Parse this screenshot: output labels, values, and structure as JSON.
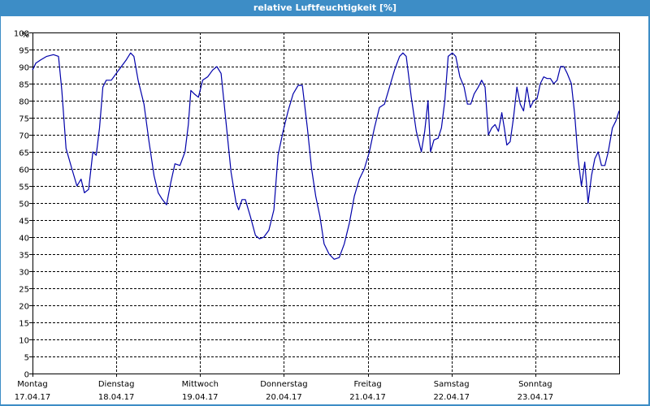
{
  "window": {
    "title": "relative Luftfeuchtigkeit [%]"
  },
  "colors": {
    "titlebar": "#3d8dc6",
    "line": "#0000aa",
    "grid": "#000000",
    "axis": "#000000"
  },
  "chart_data": {
    "type": "line",
    "title": "relative Luftfeuchtigkeit [%]",
    "ylabel": "%",
    "xlabel": "",
    "ylim": [
      0,
      100
    ],
    "xlim": [
      0,
      7
    ],
    "grid": true,
    "yticks": [
      "0",
      "5",
      "10",
      "15",
      "20",
      "25",
      "30",
      "35",
      "40",
      "45",
      "50",
      "55",
      "60",
      "65",
      "70",
      "75",
      "80",
      "85",
      "90",
      "95",
      "100"
    ],
    "xticks": [
      {
        "day": "Montag",
        "date": "17.04.17"
      },
      {
        "day": "Dienstag",
        "date": "18.04.17"
      },
      {
        "day": "Mittwoch",
        "date": "19.04.17"
      },
      {
        "day": "Donnerstag",
        "date": "20.04.17"
      },
      {
        "day": "Freitag",
        "date": "21.04.17"
      },
      {
        "day": "Samstag",
        "date": "22.04.17"
      },
      {
        "day": "Sonntag",
        "date": "23.04.17"
      }
    ],
    "series": [
      {
        "values": [
          [
            0.0,
            89
          ],
          [
            0.04,
            91
          ],
          [
            0.1,
            92
          ],
          [
            0.17,
            93
          ],
          [
            0.25,
            93.5
          ],
          [
            0.31,
            93
          ],
          [
            0.35,
            83
          ],
          [
            0.4,
            66
          ],
          [
            0.47,
            60
          ],
          [
            0.53,
            55
          ],
          [
            0.58,
            57
          ],
          [
            0.62,
            53
          ],
          [
            0.67,
            54
          ],
          [
            0.72,
            65
          ],
          [
            0.76,
            64
          ],
          [
            0.8,
            72
          ],
          [
            0.84,
            84
          ],
          [
            0.88,
            86
          ],
          [
            0.94,
            86
          ],
          [
            1.0,
            88
          ],
          [
            1.06,
            90
          ],
          [
            1.12,
            92
          ],
          [
            1.17,
            94
          ],
          [
            1.21,
            93
          ],
          [
            1.26,
            86
          ],
          [
            1.33,
            79
          ],
          [
            1.39,
            68
          ],
          [
            1.45,
            58
          ],
          [
            1.5,
            53
          ],
          [
            1.55,
            51
          ],
          [
            1.6,
            49.5
          ],
          [
            1.65,
            56
          ],
          [
            1.7,
            61.5
          ],
          [
            1.76,
            61
          ],
          [
            1.82,
            65
          ],
          [
            1.86,
            73
          ],
          [
            1.89,
            83
          ],
          [
            1.93,
            82
          ],
          [
            1.98,
            81
          ],
          [
            2.03,
            86
          ],
          [
            2.09,
            87
          ],
          [
            2.15,
            89
          ],
          [
            2.2,
            90
          ],
          [
            2.25,
            88
          ],
          [
            2.3,
            76
          ],
          [
            2.37,
            59
          ],
          [
            2.43,
            50
          ],
          [
            2.46,
            48
          ],
          [
            2.5,
            51
          ],
          [
            2.54,
            51
          ],
          [
            2.6,
            46
          ],
          [
            2.66,
            40.5
          ],
          [
            2.71,
            39.5
          ],
          [
            2.76,
            40
          ],
          [
            2.82,
            42
          ],
          [
            2.88,
            48
          ],
          [
            2.93,
            64
          ],
          [
            2.99,
            71
          ],
          [
            3.05,
            77
          ],
          [
            3.11,
            82
          ],
          [
            3.17,
            84.5
          ],
          [
            3.22,
            84.5
          ],
          [
            3.28,
            72
          ],
          [
            3.33,
            60
          ],
          [
            3.38,
            52
          ],
          [
            3.43,
            46
          ],
          [
            3.48,
            38
          ],
          [
            3.54,
            35
          ],
          [
            3.6,
            33.5
          ],
          [
            3.66,
            34
          ],
          [
            3.72,
            38
          ],
          [
            3.78,
            44
          ],
          [
            3.84,
            52
          ],
          [
            3.9,
            57
          ],
          [
            3.96,
            60
          ],
          [
            4.02,
            65
          ],
          [
            4.08,
            72
          ],
          [
            4.14,
            78
          ],
          [
            4.2,
            79
          ],
          [
            4.26,
            84
          ],
          [
            4.32,
            89
          ],
          [
            4.38,
            93
          ],
          [
            4.42,
            94
          ],
          [
            4.46,
            93
          ],
          [
            4.52,
            81
          ],
          [
            4.58,
            71
          ],
          [
            4.64,
            65
          ],
          [
            4.68,
            71
          ],
          [
            4.72,
            80
          ],
          [
            4.75,
            65
          ],
          [
            4.79,
            68.5
          ],
          [
            4.84,
            69
          ],
          [
            4.88,
            72
          ],
          [
            4.92,
            80
          ],
          [
            4.96,
            93
          ],
          [
            5.01,
            94
          ],
          [
            5.05,
            93
          ],
          [
            5.1,
            87
          ],
          [
            5.15,
            84
          ],
          [
            5.19,
            79
          ],
          [
            5.23,
            79
          ],
          [
            5.27,
            82
          ],
          [
            5.32,
            84
          ],
          [
            5.36,
            86
          ],
          [
            5.4,
            84
          ],
          [
            5.44,
            70
          ],
          [
            5.48,
            72
          ],
          [
            5.52,
            73
          ],
          [
            5.56,
            71
          ],
          [
            5.6,
            76.5
          ],
          [
            5.63,
            72
          ],
          [
            5.66,
            67
          ],
          [
            5.7,
            68
          ],
          [
            5.74,
            75
          ],
          [
            5.78,
            84
          ],
          [
            5.82,
            79
          ],
          [
            5.86,
            77
          ],
          [
            5.9,
            84
          ],
          [
            5.94,
            78
          ],
          [
            5.98,
            80
          ],
          [
            6.02,
            80.5
          ],
          [
            6.06,
            85
          ],
          [
            6.1,
            87
          ],
          [
            6.14,
            86.5
          ],
          [
            6.18,
            86.5
          ],
          [
            6.22,
            85
          ],
          [
            6.26,
            86
          ],
          [
            6.3,
            90
          ],
          [
            6.34,
            90
          ],
          [
            6.38,
            88
          ],
          [
            6.43,
            85
          ],
          [
            6.47,
            76
          ],
          [
            6.51,
            63
          ],
          [
            6.55,
            55
          ],
          [
            6.59,
            62
          ],
          [
            6.63,
            50
          ],
          [
            6.67,
            58
          ],
          [
            6.71,
            63
          ],
          [
            6.75,
            65
          ],
          [
            6.79,
            61
          ],
          [
            6.83,
            61
          ],
          [
            6.87,
            65
          ],
          [
            6.92,
            72
          ],
          [
            6.96,
            74
          ],
          [
            7.0,
            77
          ]
        ]
      }
    ]
  }
}
